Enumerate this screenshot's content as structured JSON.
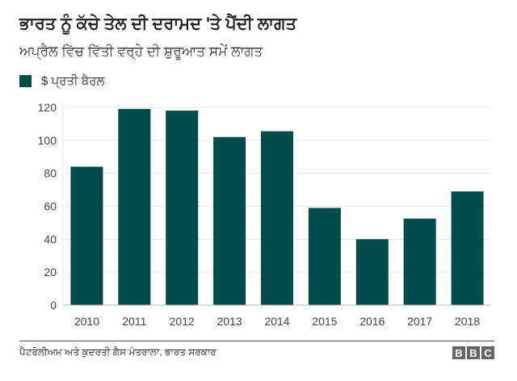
{
  "title": "ਭਾਰਤ ਨੂੰ ਕੱਚੇ ਤੇਲ ਦੀ ਦਰਾਮਦ 'ਤੇ ਪੈਂਦੀ ਲਾਗਤ",
  "subtitle": "ਅਪ੍ਰੈਲ ਵਿੱਚ ਵਿੱਤੀ ਵਰ੍ਹੇ ਦੀ ਸ਼ੁਰੂਆਤ ਸਮੇਂ ਲਾਗਤ",
  "source": "ਪੈਟਰੋਲੀਅਮ ਅਤੇ ਕੁਦਰਤੀ ਗੈਸ ਮੰਤਰਾਲਾ, ਭਾਰਤ ਸਰਕਾਰ",
  "logo": [
    "B",
    "B",
    "C"
  ],
  "colors": {
    "bar": "#004c4a",
    "grid": "#e6e6e6",
    "axis": "#bbbbbb"
  },
  "chart_data": {
    "type": "bar",
    "categories": [
      "2010",
      "2011",
      "2012",
      "2013",
      "2014",
      "2015",
      "2016",
      "2017",
      "2018"
    ],
    "series": [
      {
        "name": "$ ਪ੍ਰਤੀ ਬੈਰਲ",
        "values": [
          84,
          119,
          118,
          102,
          105.5,
          59,
          40,
          52.5,
          69
        ]
      }
    ],
    "yticks": [
      0,
      20,
      40,
      60,
      80,
      100,
      120
    ],
    "ylim": [
      0,
      120
    ],
    "grid": true,
    "legend": "top-left"
  }
}
